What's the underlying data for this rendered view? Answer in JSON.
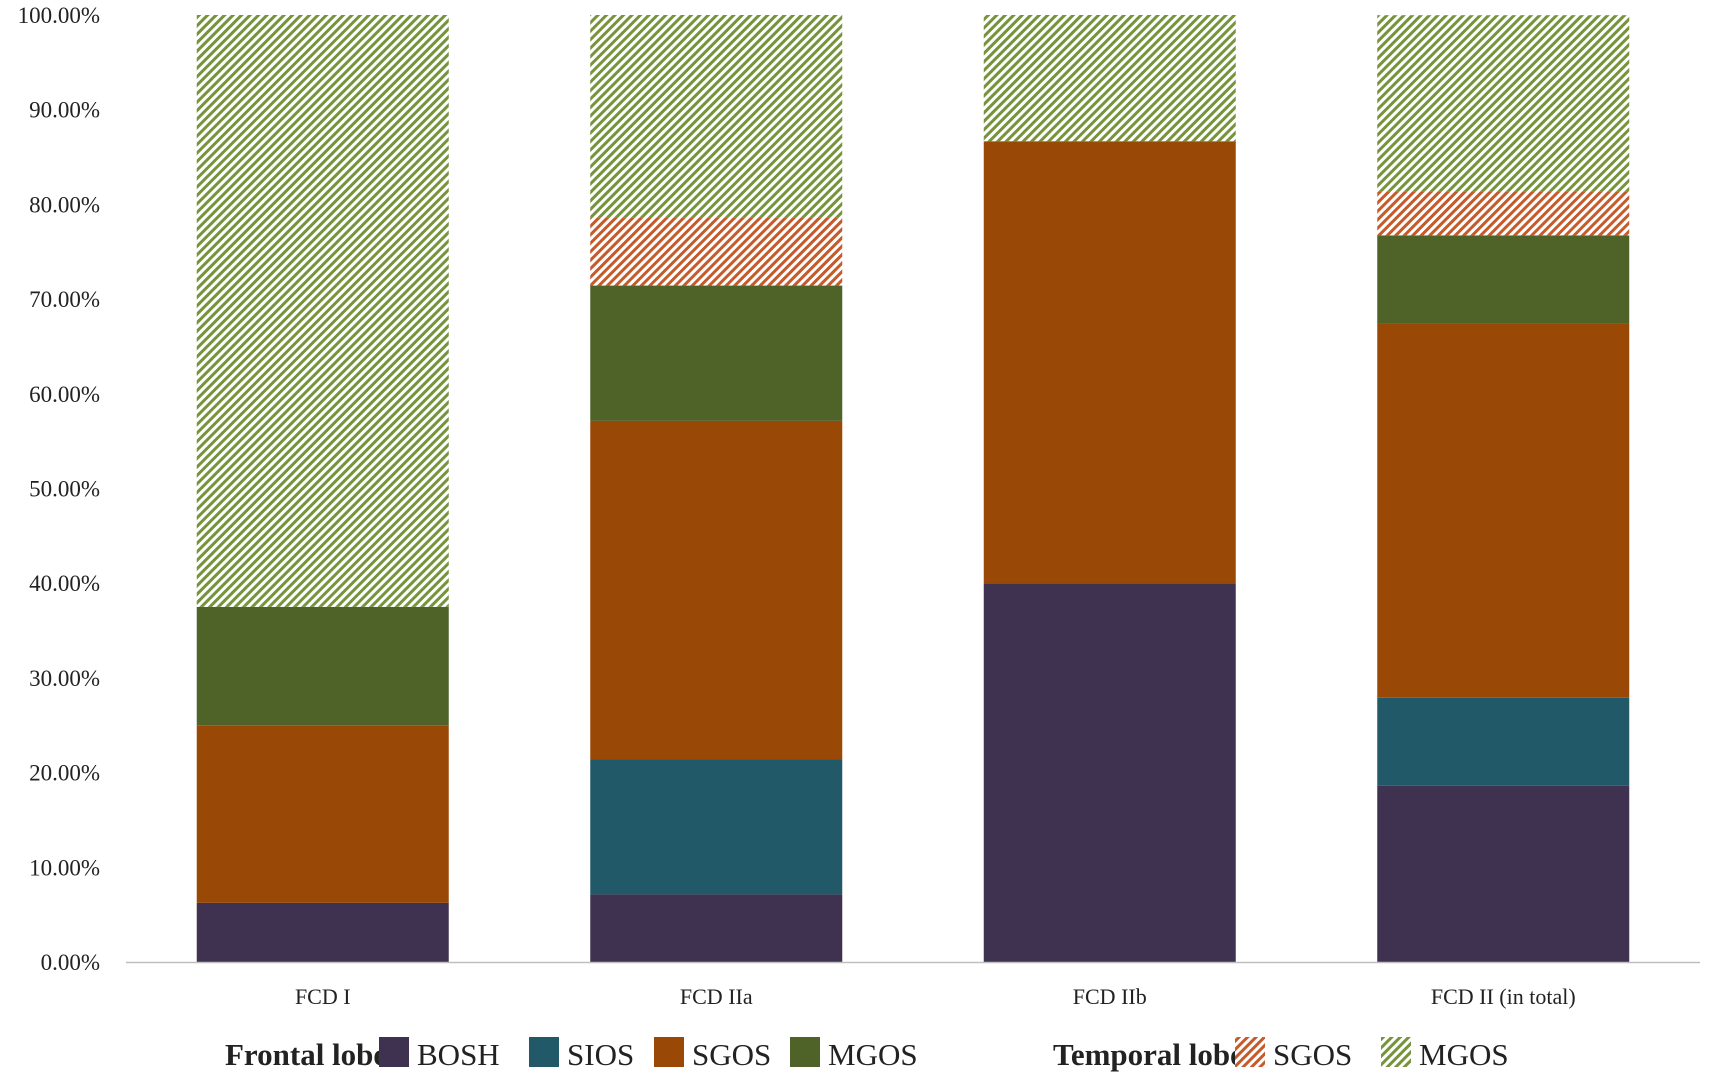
{
  "chart_data": {
    "type": "bar",
    "stacked": true,
    "categories": [
      "FCD I",
      "FCD IIa",
      "FCD IIb",
      "FCD II (in total)"
    ],
    "y_ticks": [
      "0.00%",
      "10.00%",
      "20.00%",
      "30.00%",
      "40.00%",
      "50.00%",
      "60.00%",
      "70.00%",
      "80.00%",
      "90.00%",
      "100.00%"
    ],
    "ylim": [
      0,
      100
    ],
    "grid": false,
    "legend_position": "bottom",
    "legend_groups": [
      {
        "label": "Frontal lobe",
        "entries": [
          "BOSH",
          "SIOS",
          "SGOS",
          "MGOS"
        ]
      },
      {
        "label": "Temporal lobe",
        "entries": [
          "SGOS",
          "MGOS"
        ]
      }
    ],
    "series": [
      {
        "name": "BOSH",
        "group": "Frontal lobe",
        "color": "#3f3150",
        "pattern": "solid",
        "values": [
          6.25,
          7.14,
          40.0,
          18.6
        ]
      },
      {
        "name": "SIOS",
        "group": "Frontal lobe",
        "color": "#215968",
        "pattern": "solid",
        "values": [
          0.0,
          14.29,
          0.0,
          9.3
        ]
      },
      {
        "name": "SGOS",
        "group": "Frontal lobe",
        "color": "#9a4806",
        "pattern": "solid",
        "values": [
          18.75,
          35.71,
          46.67,
          39.53
        ]
      },
      {
        "name": "MGOS",
        "group": "Frontal lobe",
        "color": "#4f6228",
        "pattern": "solid",
        "values": [
          12.5,
          14.29,
          0.0,
          9.3
        ]
      },
      {
        "name": "SGOS",
        "group": "Temporal lobe",
        "color": "#c55a2b",
        "pattern": "hatched",
        "values": [
          0.0,
          7.14,
          0.0,
          4.65
        ]
      },
      {
        "name": "MGOS",
        "group": "Temporal lobe",
        "color": "#77933c",
        "pattern": "hatched",
        "values": [
          62.5,
          21.43,
          13.33,
          18.6
        ]
      }
    ]
  }
}
